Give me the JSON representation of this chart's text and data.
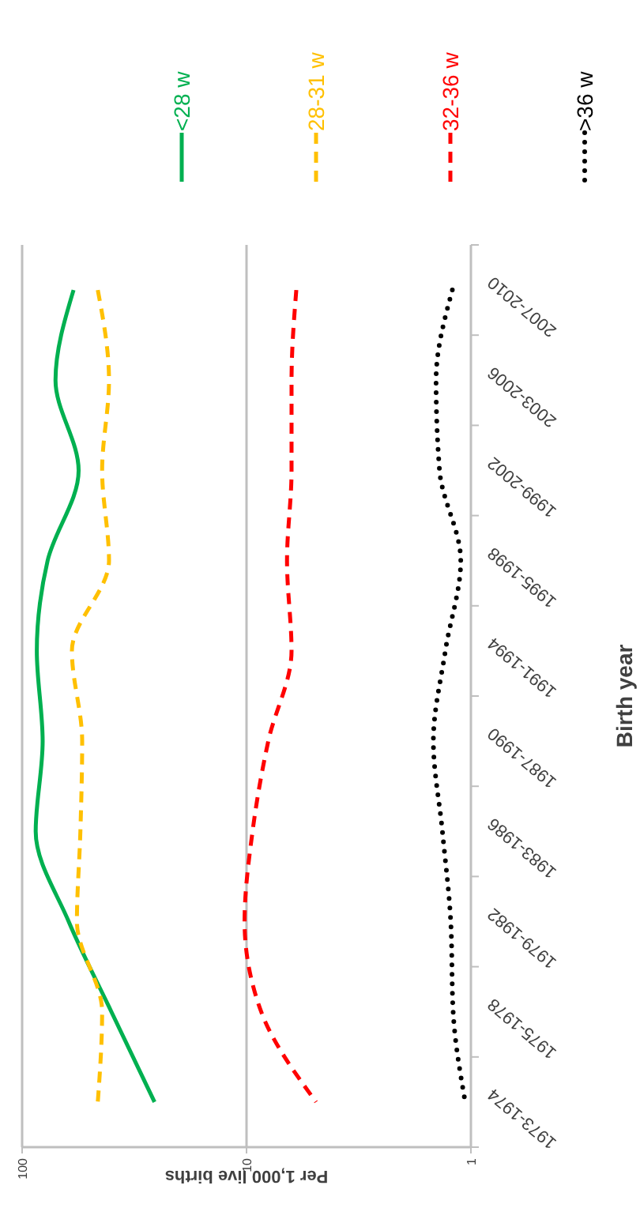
{
  "chart_data": {
    "type": "line",
    "orientation": "horizontal",
    "ylabel": "Birth year",
    "xlabel": "Per 1,000 live births",
    "categories": [
      "2007-2010",
      "2003-2006",
      "1999-2002",
      "1995-1998",
      "1991-1994",
      "1987-1990",
      "1983-1986",
      "1979-1982",
      "1975-1978",
      "1973-1974"
    ],
    "series": [
      {
        "name": "<28 w",
        "color": "#00b050",
        "line_style": "solid",
        "values": [
          59,
          71,
          56,
          77,
          86,
          81,
          87,
          62,
          40,
          25.7
        ]
      },
      {
        "name": "28-31 w",
        "color": "#ffc000",
        "line_style": "dashed",
        "values": [
          46,
          41,
          44,
          41,
          60,
          54,
          55,
          57,
          44,
          46
        ]
      },
      {
        "name": "32-36 w",
        "color": "#ff0000",
        "line_style": "dashed",
        "values": [
          6,
          6.3,
          6.3,
          6.6,
          6.3,
          8,
          9.4,
          10.2,
          8.6,
          4.9
        ]
      },
      {
        "name": ">36 w",
        "color": "#000000",
        "line_style": "dotted",
        "values": [
          1.21,
          1.43,
          1.38,
          1.11,
          1.3,
          1.47,
          1.34,
          1.23,
          1.2,
          1.06
        ]
      }
    ],
    "log": "x",
    "xlim": [
      100,
      1
    ],
    "xticks": [
      100,
      10,
      1
    ],
    "grid": "x",
    "legend": "top"
  }
}
